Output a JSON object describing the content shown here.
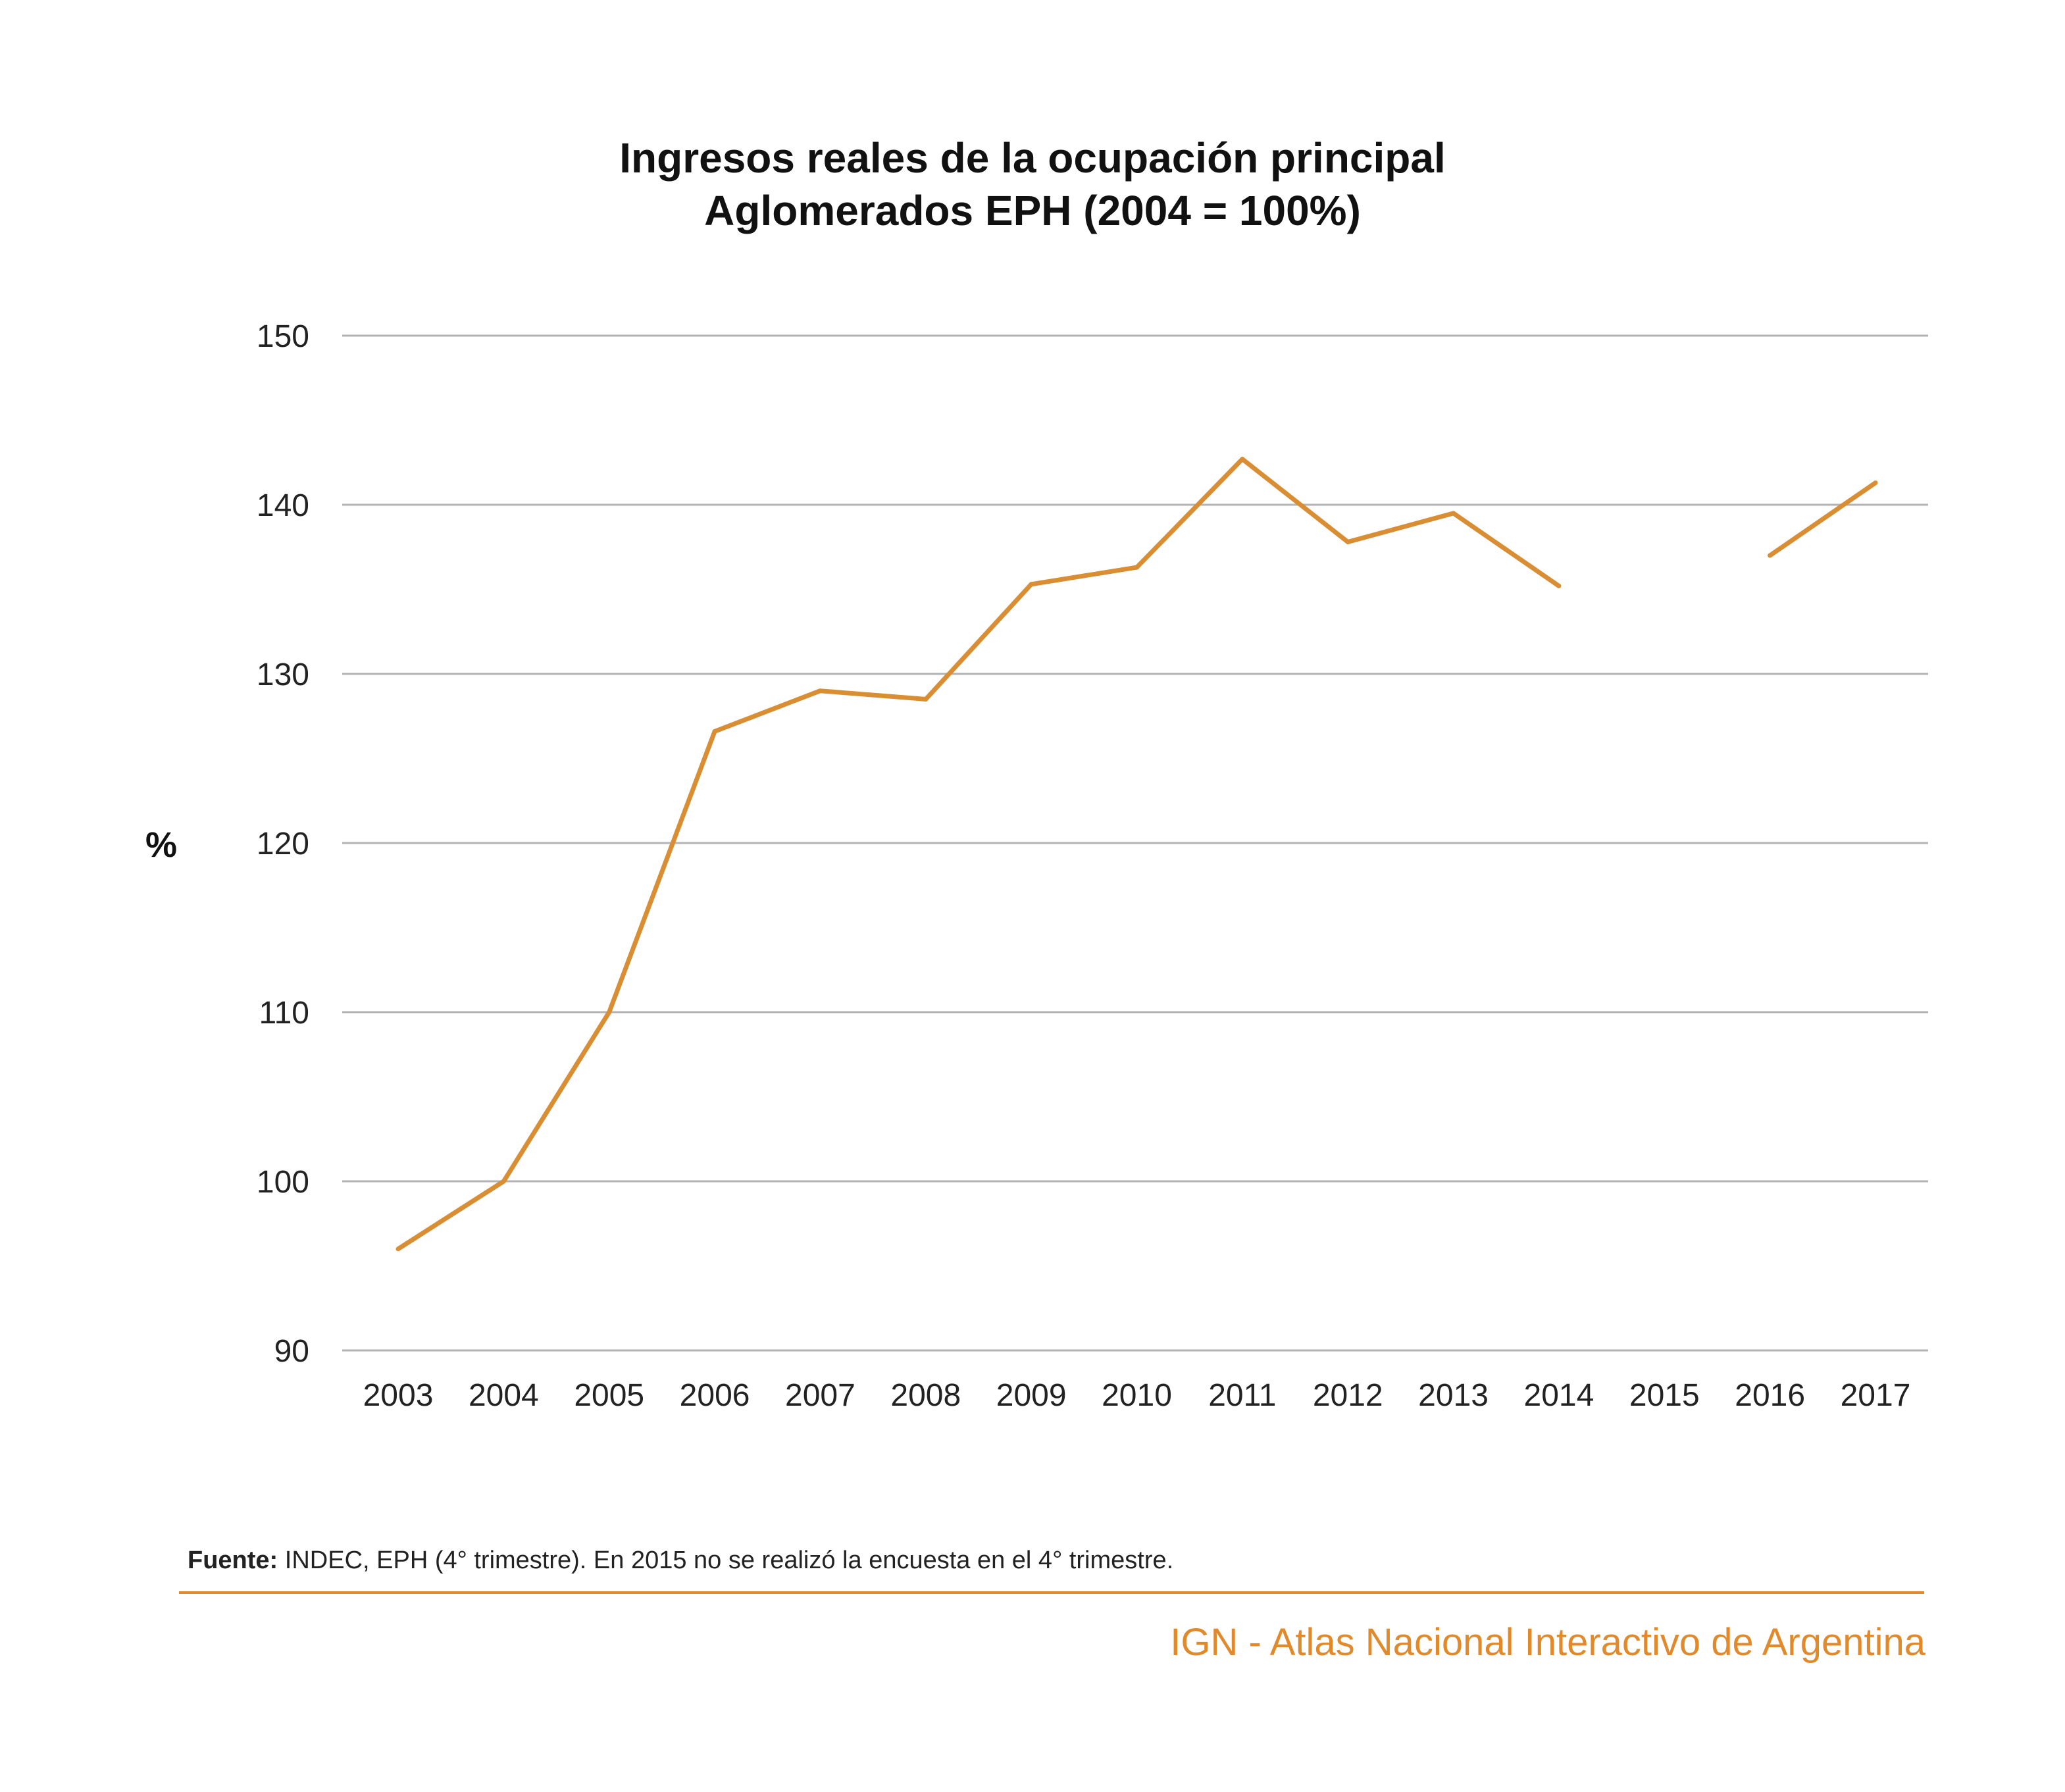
{
  "chart_data": {
    "type": "line",
    "title": "Ingresos reales de la ocupación principal",
    "subtitle": "Aglomerados EPH (2004 = 100%)",
    "ylabel": "%",
    "xlabel": "",
    "categories": [
      "2003",
      "2004",
      "2005",
      "2006",
      "2007",
      "2008",
      "2009",
      "2010",
      "2011",
      "2012",
      "2013",
      "2014",
      "2015",
      "2016",
      "2017"
    ],
    "series": [
      {
        "values": [
          96.0,
          100.0,
          110.0,
          126.6,
          129.0,
          128.5,
          135.3,
          136.3,
          142.7,
          137.8,
          139.5,
          135.2,
          null,
          137.0,
          141.3
        ]
      }
    ],
    "ylim": [
      90,
      150
    ],
    "yticks": [
      90,
      100,
      110,
      120,
      130,
      140,
      150
    ],
    "grid": true,
    "legend": "none",
    "line_color": "#d98e34",
    "grid_color": "#b3b3b3"
  },
  "source": {
    "label": "Fuente:",
    "text": " INDEC, EPH (4° trimestre). En 2015 no se realizó la encuesta en el 4° trimestre."
  },
  "credit": "IGN - Atlas Nacional Interactivo de Argentina",
  "accent_color": "#e08a2c"
}
